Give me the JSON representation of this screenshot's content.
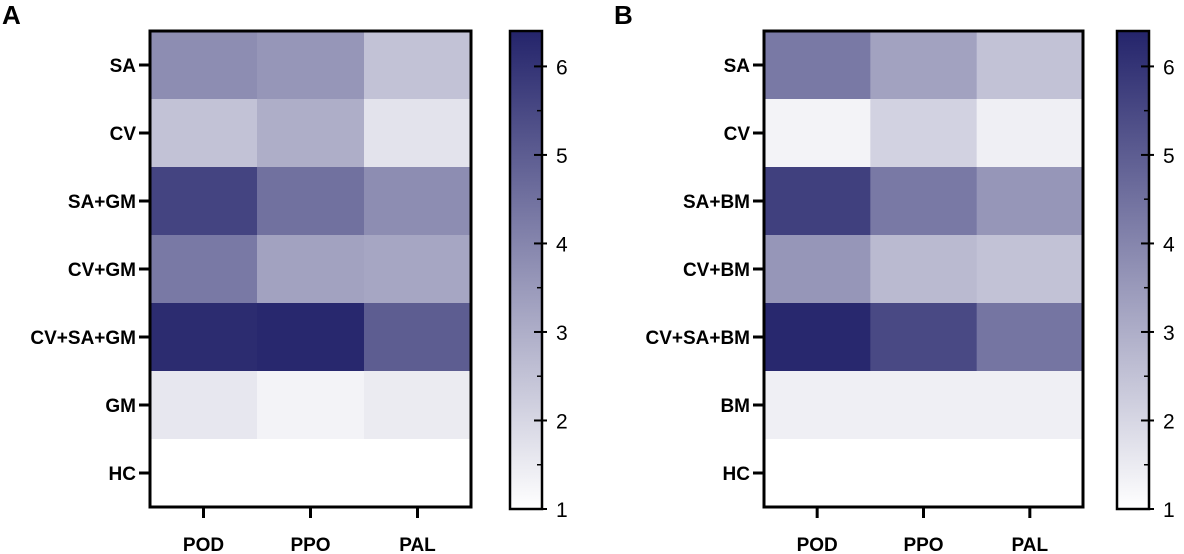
{
  "chart_data": [
    {
      "type": "heatmap",
      "panel": "A",
      "rows": [
        "SA",
        "CV",
        "SA+GM",
        "CV+GM",
        "CV+SA+GM",
        "GM",
        "HC"
      ],
      "columns": [
        "POD",
        "PPO",
        "PAL"
      ],
      "values": [
        [
          3.8,
          3.6,
          2.5
        ],
        [
          2.5,
          3.0,
          1.7
        ],
        [
          5.6,
          4.5,
          3.8
        ],
        [
          4.3,
          3.3,
          3.2
        ],
        [
          6.2,
          6.3,
          5.0
        ],
        [
          1.6,
          1.3,
          1.5
        ],
        [
          1.0,
          1.0,
          1.0
        ]
      ],
      "colorbar": {
        "min": 1,
        "max": 6.4,
        "ticks": [
          "1",
          "2",
          "3",
          "4",
          "5",
          "6"
        ]
      }
    },
    {
      "type": "heatmap",
      "panel": "B",
      "rows": [
        "SA",
        "CV",
        "SA+BM",
        "CV+BM",
        "CV+SA+BM",
        "BM",
        "HC"
      ],
      "columns": [
        "POD",
        "PPO",
        "PAL"
      ],
      "values": [
        [
          4.3,
          3.3,
          2.5
        ],
        [
          1.3,
          2.1,
          1.4
        ],
        [
          5.7,
          4.3,
          3.6
        ],
        [
          3.6,
          2.7,
          2.5
        ],
        [
          6.3,
          5.5,
          4.4
        ],
        [
          1.4,
          1.4,
          1.4
        ],
        [
          1.0,
          1.0,
          1.0
        ]
      ],
      "colorbar": {
        "min": 1,
        "max": 6.4,
        "ticks": [
          "1",
          "2",
          "3",
          "4",
          "5",
          "6"
        ]
      }
    }
  ],
  "colors": {
    "low": "#ffffff",
    "high": "#24246b",
    "frame": "#000000"
  }
}
